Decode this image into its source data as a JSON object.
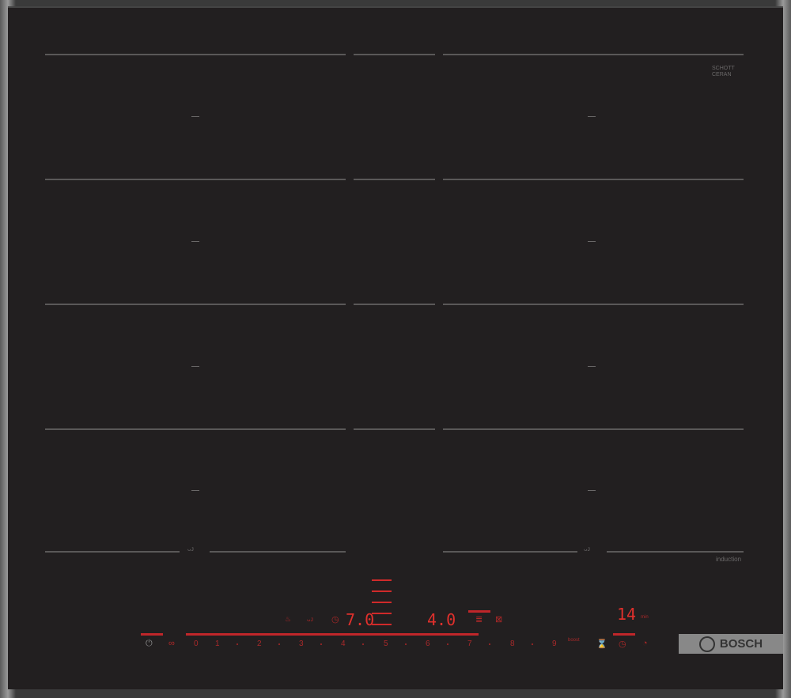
{
  "brand": "BOSCH",
  "glass_logo": "SCHOTT CERAN",
  "induction_label": "induction",
  "displays": {
    "left_level": "7.0",
    "right_level": "4.0",
    "timer": "14",
    "timer_unit": "min"
  },
  "slider_numbers": [
    "0",
    "1",
    "2",
    "3",
    "4",
    "5",
    "6",
    "7",
    "8",
    "9"
  ],
  "boost_label": "boost",
  "icons": [
    "power-icon",
    "child-lock-icon",
    "timer-icon",
    "stopwatch-icon",
    "flex-zone-icon",
    "pan-boost-icon",
    "keep-warm-icon"
  ],
  "colors": {
    "glass": "#221f20",
    "display_red": "#e0302c",
    "frame": "#9a9a9a"
  }
}
